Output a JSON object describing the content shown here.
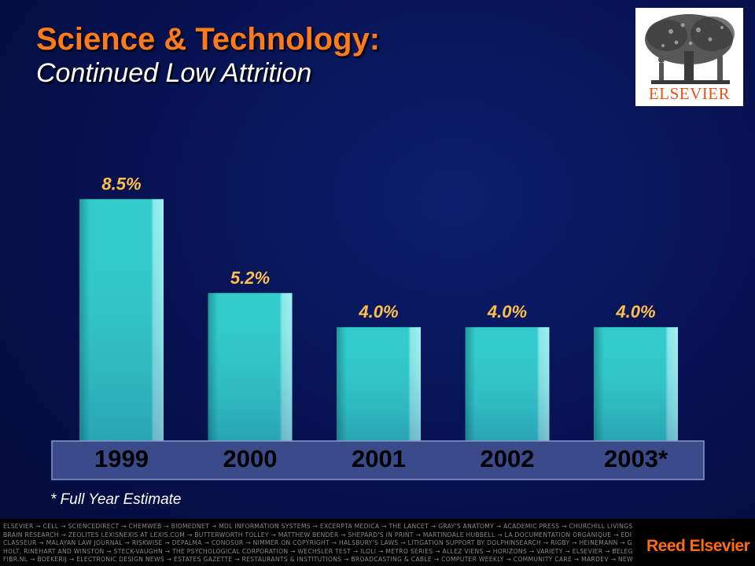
{
  "header": {
    "title": "Science & Technology:",
    "subtitle": "Continued Low Attrition"
  },
  "logo": {
    "wordmark": "ELSEVIER"
  },
  "chart_data": {
    "type": "bar",
    "categories": [
      "1999",
      "2000",
      "2001",
      "2002",
      "2003*"
    ],
    "values": [
      8.5,
      5.2,
      4.0,
      4.0,
      4.0
    ],
    "data_labels": [
      "8.5%",
      "5.2%",
      "4.0%",
      "4.0%",
      "4.0%"
    ],
    "unit": "%",
    "title": "",
    "xlabel": "",
    "ylabel": "",
    "grid": false,
    "colors": {
      "bar": "#33cccc",
      "bar_shade": "#1f9898",
      "bar_highlight": "#8ae8e8",
      "axis_band": "#3a4a8a",
      "label": "#ffc04a"
    }
  },
  "footnote": "* Full Year Estimate",
  "footer": {
    "imprint_lines": [
      "ELSEVIER → CELL → SCIENCEDIRECT → CHEMWEB → BIOMEDNET → MDL INFORMATION SYSTEMS → EXCERPTA MEDICA → THE LANCET → GRAY'S ANATOMY → ACADEMIC PRESS → CHURCHILL LIVINGSTONE → MOSBY → WB SAUNDERS → MD CONSULT",
      "BRAIN RESEARCH → ZEOLITES LEXISNEXIS AT LEXIS.COM → BUTTERWORTH TOLLEY → MATTHEW BENDER → SHEPARD'S IN PRINT → MARTINDALE HUBBELL → LA DOCUMENTATION ORGANIQUE → EDITIONS DU JURIS",
      "CLASSEUR → MALAYAN LAW JOURNAL → RISKWISE → DEPALMA → CONOSUR → NIMMER ON COPYRIGHT → HALSBURY'S LAWS → LITIGATION SUPPORT BY DOLPHINSEARCH → RIGBY → HEINEMANN → GINN → GREENWOOD",
      "HOLT, RINEHART AND WINSTON → STECK-VAUGHN → THE PSYCHOLOGICAL CORPORATION → WECHSLER TEST → ILOLI → METRO SERIES → ALLEZ VIENS → HORIZONS → VARIETY → ELSEVIER → BELEGGERS BELANGEN",
      "FIBR.NL → BOEKERIJ → ELECTRONIC DESIGN NEWS → ESTATES GAZETTE → RESTAURANTS & INSTITUTIONS → BROADCASTING & CABLE → COMPUTER WEEKLY → COMMUNITY CARE → MARDEV → NEW SCIENTIST → FLIGHT INTERNATIONAL"
    ],
    "brand": "Reed Elsevier"
  }
}
